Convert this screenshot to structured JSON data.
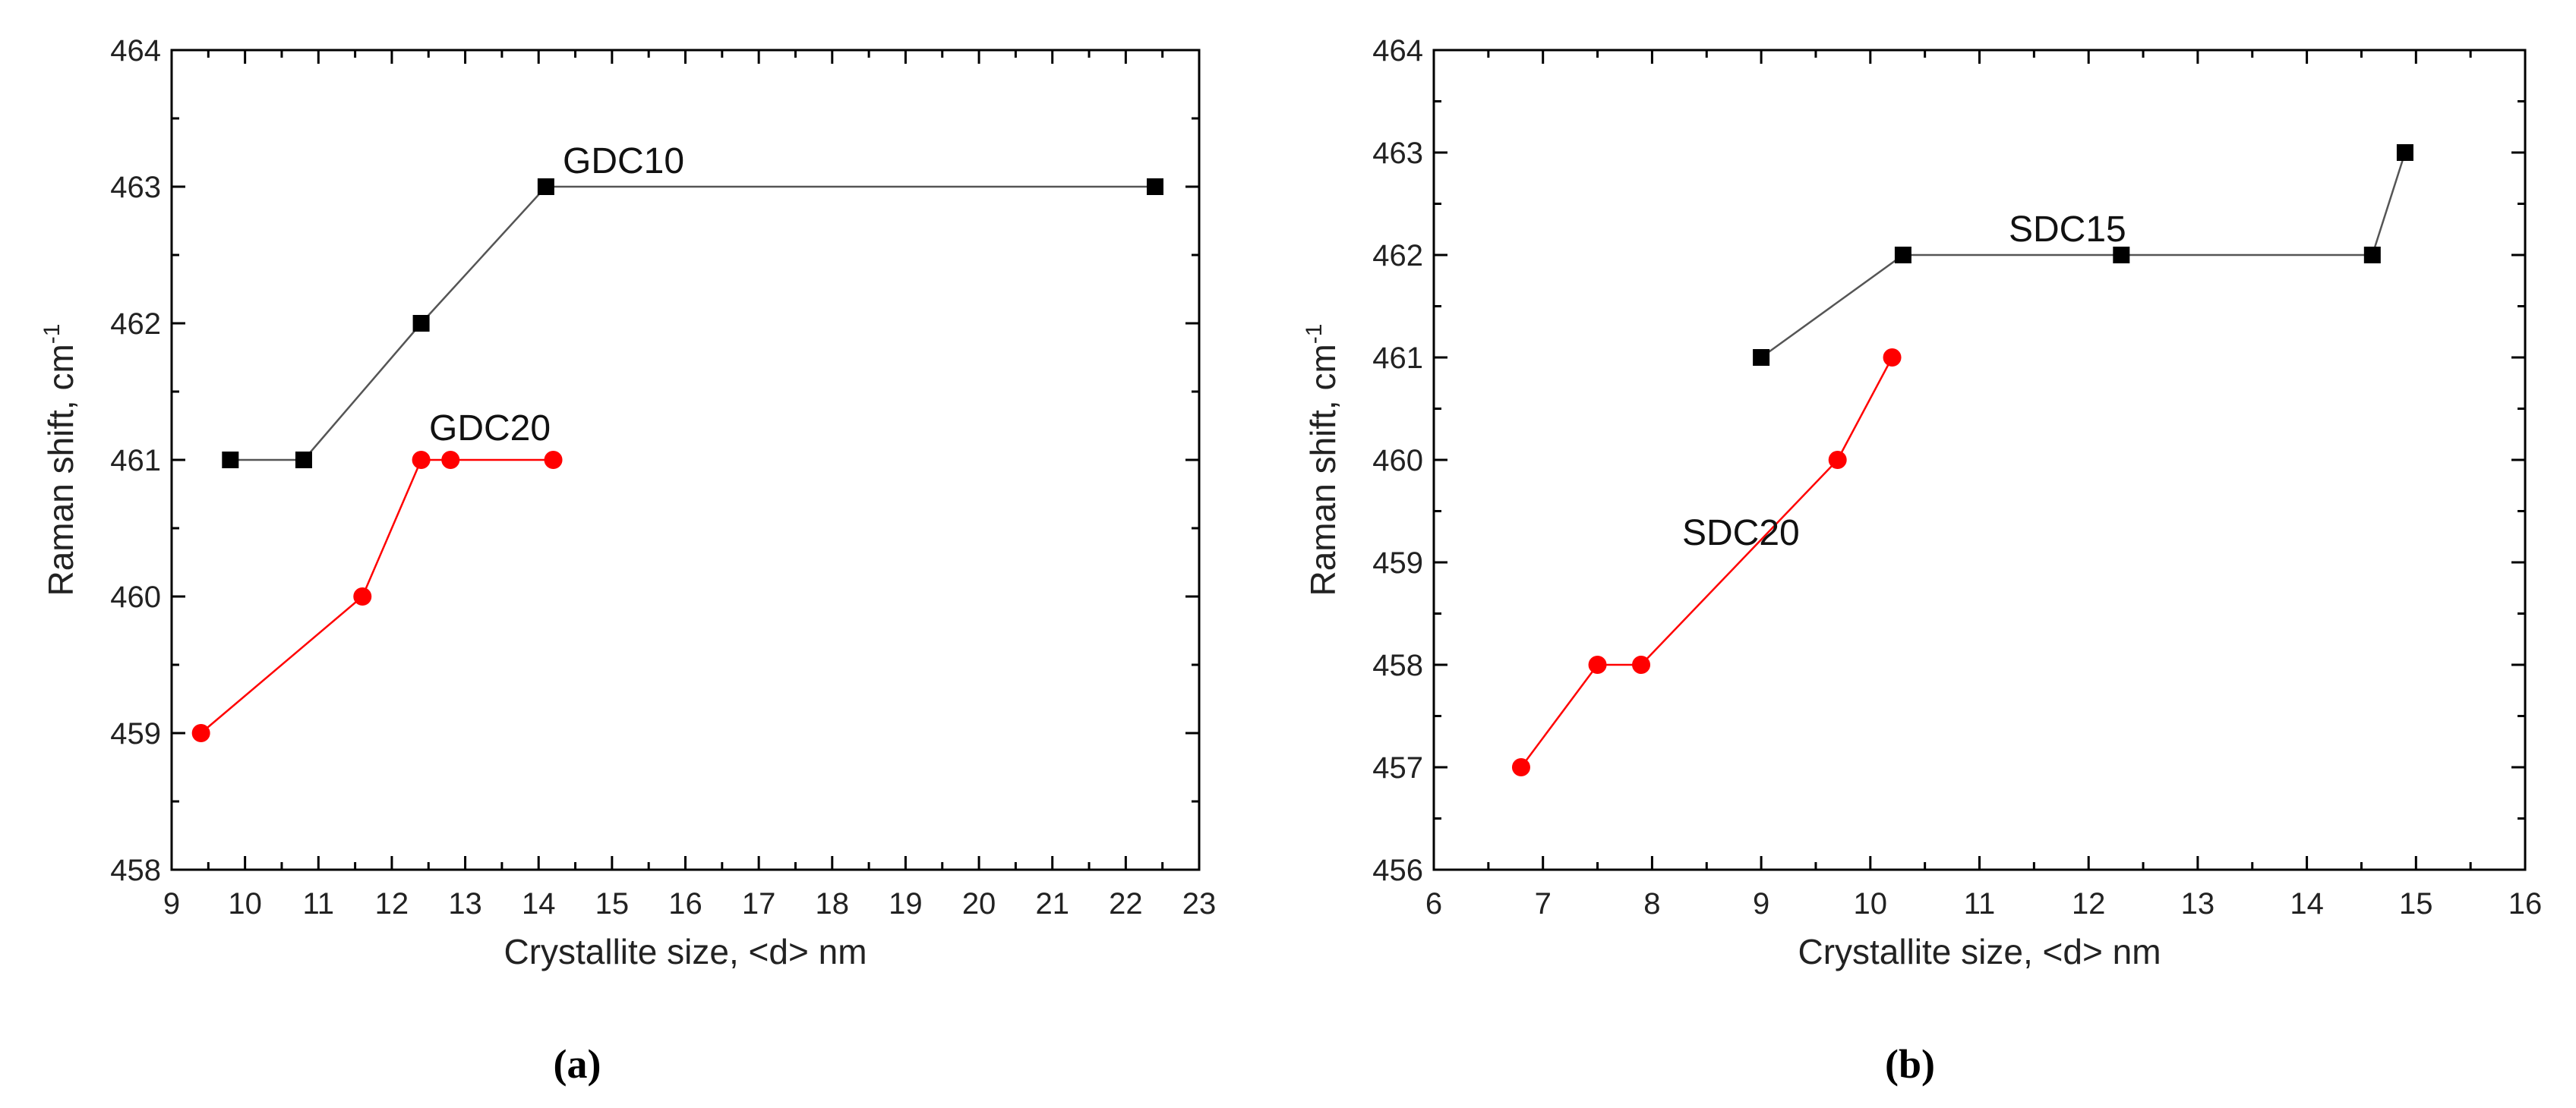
{
  "panels": [
    {
      "caption": "(a)"
    },
    {
      "caption": "(b)"
    }
  ],
  "chart_data": [
    {
      "type": "line",
      "xlabel": "Crystallite size, <d> nm",
      "ylabel": "Raman shift, cm",
      "ylabel_superscript": "-1",
      "xlim": [
        9,
        23
      ],
      "ylim": [
        458,
        464
      ],
      "x_ticks": [
        9,
        10,
        11,
        12,
        13,
        14,
        15,
        16,
        17,
        18,
        19,
        20,
        21,
        22,
        23
      ],
      "y_ticks": [
        458,
        459,
        460,
        461,
        462,
        463,
        464
      ],
      "grid": false,
      "series": [
        {
          "name": "GDC10",
          "color": "#000000",
          "marker": "square",
          "points": [
            [
              9.8,
              461
            ],
            [
              10.8,
              461
            ],
            [
              12.4,
              462
            ],
            [
              14.1,
              463
            ],
            [
              22.4,
              463
            ]
          ]
        },
        {
          "name": "GDC20",
          "color": "#ff0000",
          "marker": "circle",
          "points": [
            [
              9.4,
              459
            ],
            [
              11.6,
              460
            ],
            [
              12.4,
              461
            ],
            [
              12.8,
              461
            ],
            [
              14.2,
              461
            ]
          ]
        }
      ]
    },
    {
      "type": "line",
      "xlabel": "Crystallite size, <d> nm",
      "ylabel": "Raman shift, cm",
      "ylabel_superscript": "-1",
      "xlim": [
        6,
        16
      ],
      "ylim": [
        456,
        464
      ],
      "x_ticks": [
        6,
        7,
        8,
        9,
        10,
        11,
        12,
        13,
        14,
        15,
        16
      ],
      "y_ticks": [
        456,
        457,
        458,
        459,
        460,
        461,
        462,
        463,
        464
      ],
      "grid": false,
      "series": [
        {
          "name": "SDC15",
          "color": "#000000",
          "marker": "square",
          "points": [
            [
              9.0,
              461
            ],
            [
              10.3,
              462
            ],
            [
              12.3,
              462
            ],
            [
              14.6,
              462
            ],
            [
              14.9,
              463
            ]
          ]
        },
        {
          "name": "SDC20",
          "color": "#ff0000",
          "marker": "circle",
          "points": [
            [
              6.8,
              457
            ],
            [
              7.5,
              458
            ],
            [
              7.9,
              458
            ],
            [
              9.7,
              460
            ],
            [
              10.2,
              461
            ]
          ]
        }
      ]
    }
  ]
}
